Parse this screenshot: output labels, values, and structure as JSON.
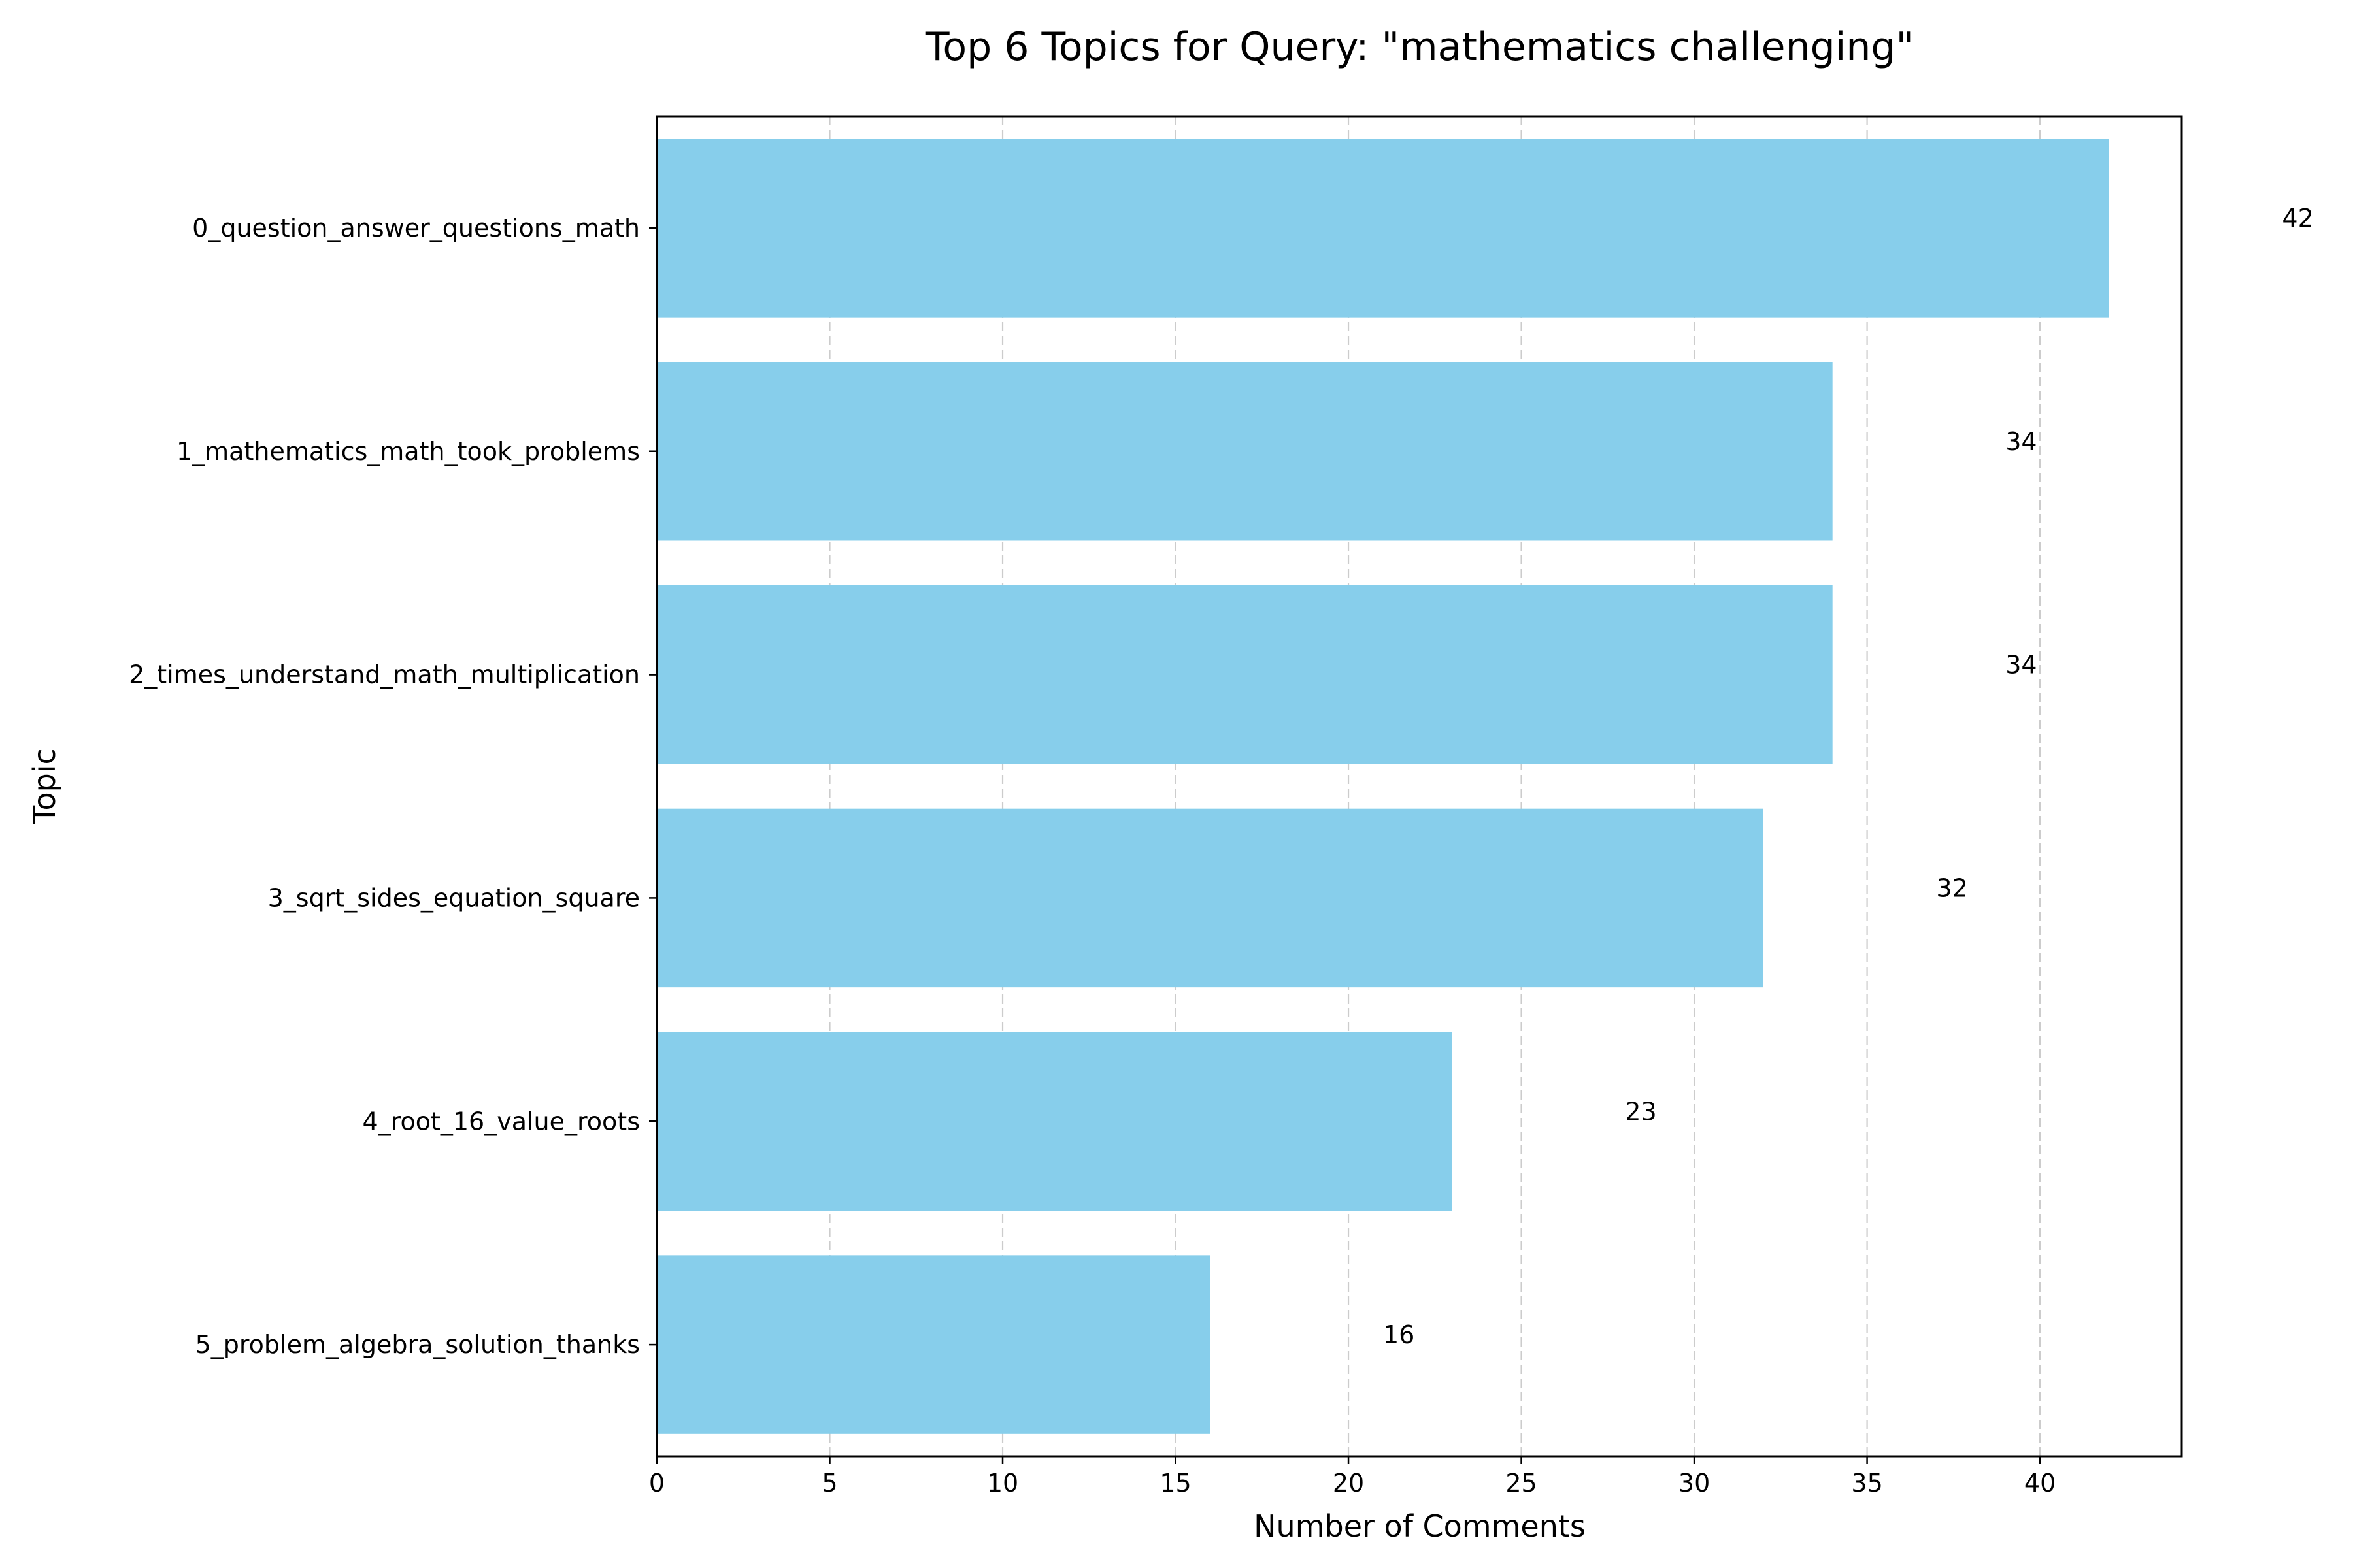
{
  "chart_data": {
    "type": "bar",
    "orientation": "horizontal",
    "title": "Top 6 Topics for Query: \"mathematics challenging\"",
    "xlabel": "Number of Comments",
    "ylabel": "Topic",
    "categories": [
      "0_question_answer_questions_math",
      "1_mathematics_math_took_problems",
      "2_times_understand_math_multiplication",
      "3_sqrt_sides_equation_square",
      "4_root_16_value_roots",
      "5_problem_algebra_solution_thanks"
    ],
    "values": [
      42,
      34,
      34,
      32,
      23,
      16
    ],
    "value_labels": [
      "42",
      "34",
      "34",
      "32",
      "23",
      "16"
    ],
    "xlim": [
      0,
      44.1
    ],
    "xticks": [
      0,
      5,
      10,
      15,
      20,
      25,
      30,
      35,
      40
    ],
    "xtick_labels": [
      "0",
      "5",
      "10",
      "15",
      "20",
      "25",
      "30",
      "35",
      "40"
    ],
    "grid": "x-dashed",
    "bar_color": "#87ceeb",
    "grid_color": "#cccccc"
  }
}
